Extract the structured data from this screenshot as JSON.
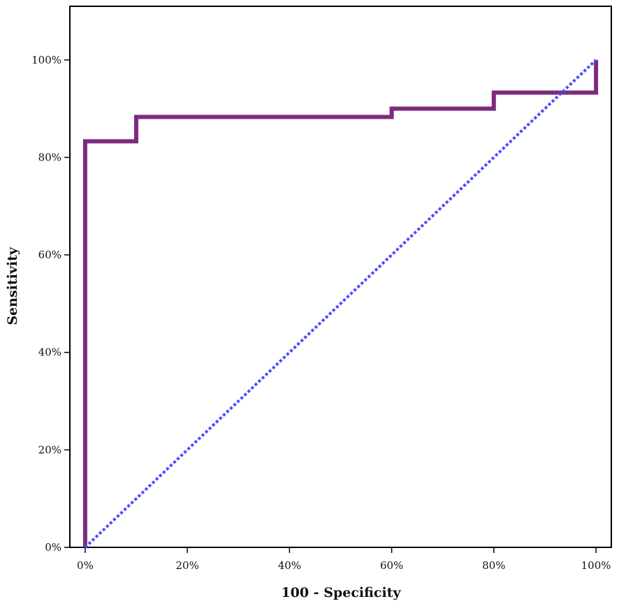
{
  "chart_data": {
    "type": "line",
    "title": "",
    "xlabel": "100 - Specificity",
    "ylabel": "Sensitivity",
    "xlim": [
      -3,
      103
    ],
    "ylim": [
      0,
      111
    ],
    "grid": false,
    "x_ticks": [
      {
        "value": 0,
        "label": "0%"
      },
      {
        "value": 20,
        "label": "20%"
      },
      {
        "value": 40,
        "label": "40%"
      },
      {
        "value": 60,
        "label": "60%"
      },
      {
        "value": 80,
        "label": "80%"
      },
      {
        "value": 100,
        "label": "100%"
      }
    ],
    "y_ticks": [
      {
        "value": 0,
        "label": "0%"
      },
      {
        "value": 20,
        "label": "20%"
      },
      {
        "value": 40,
        "label": "40%"
      },
      {
        "value": 60,
        "label": "60%"
      },
      {
        "value": 80,
        "label": "80%"
      },
      {
        "value": 100,
        "label": "100%"
      }
    ],
    "series": [
      {
        "style": "step",
        "color": "#7d2a7f",
        "x": [
          0,
          0,
          10,
          10,
          60,
          60,
          80,
          80,
          100,
          100
        ],
        "y": [
          0,
          83.3,
          83.3,
          88.3,
          88.3,
          90,
          90,
          93.3,
          93.3,
          100
        ]
      },
      {
        "style": "dotted",
        "color": "#4d4dff",
        "x": [
          0,
          100
        ],
        "y": [
          0,
          100
        ]
      }
    ]
  }
}
